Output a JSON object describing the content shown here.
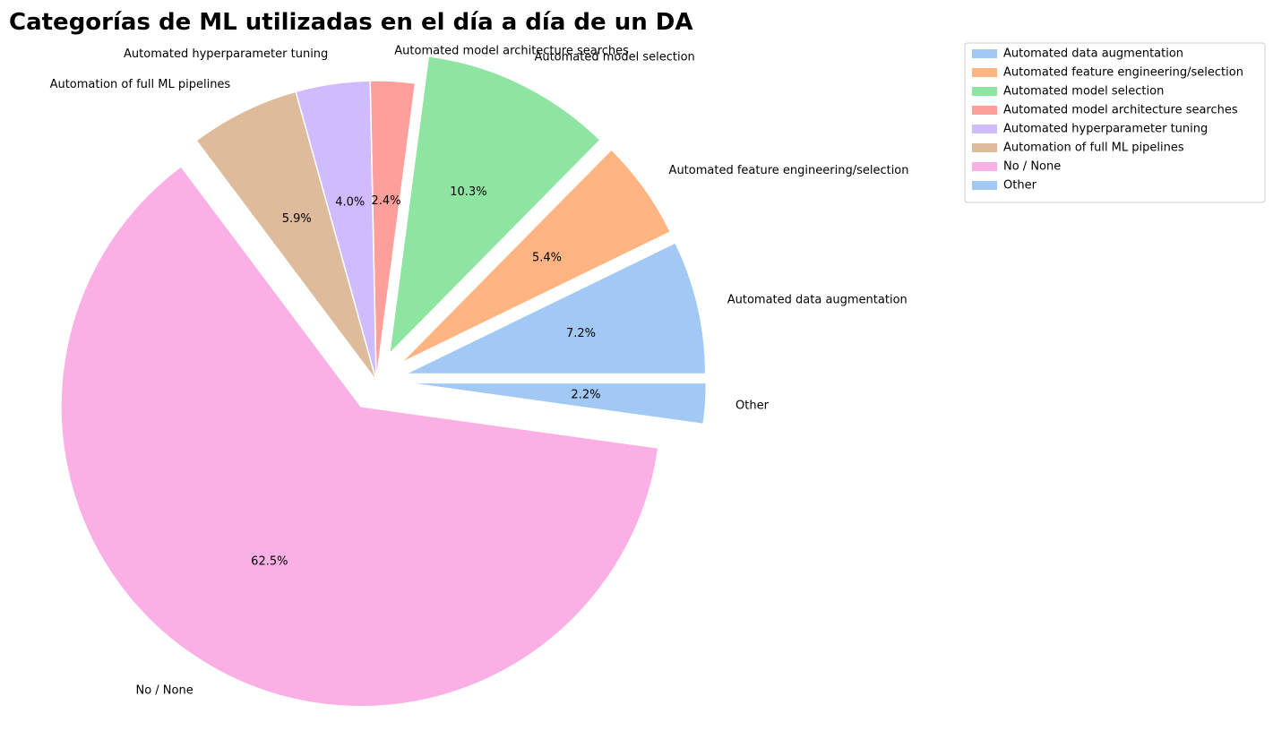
{
  "chart_data": {
    "type": "pie",
    "title": "Categorías de ML utilizadas en el día a día de un DA",
    "slices": [
      {
        "label": "Automated data augmentation",
        "value": 7.2,
        "pct_label": "7.2%",
        "color": "#a1c9f4",
        "exploded": true
      },
      {
        "label": "Automated feature engineering/selection",
        "value": 5.4,
        "pct_label": "5.4%",
        "color": "#ffb482",
        "exploded": true
      },
      {
        "label": "Automated model selection",
        "value": 10.3,
        "pct_label": "10.3%",
        "color": "#8de5a1",
        "exploded": true
      },
      {
        "label": "Automated model architecture searches",
        "value": 2.4,
        "pct_label": "2.4%",
        "color": "#ff9f9b",
        "exploded": false
      },
      {
        "label": "Automated hyperparameter tuning",
        "value": 4.0,
        "pct_label": "4.0%",
        "color": "#d0bbff",
        "exploded": false
      },
      {
        "label": "Automation of full ML pipelines",
        "value": 5.9,
        "pct_label": "5.9%",
        "color": "#debb9b",
        "exploded": false
      },
      {
        "label": "No / None",
        "value": 62.5,
        "pct_label": "62.5%",
        "color": "#fab0e4",
        "exploded": true
      },
      {
        "label": "Other",
        "value": 2.2,
        "pct_label": "2.2%",
        "color": "#a1c9f4",
        "exploded": true
      }
    ],
    "legend": {
      "placement": "top-right",
      "entries": [
        "Automated data augmentation",
        "Automated feature engineering/selection",
        "Automated model selection",
        "Automated model architecture searches",
        "Automated hyperparameter tuning",
        "Automation of full ML pipelines",
        "No / None",
        "Other"
      ]
    }
  }
}
